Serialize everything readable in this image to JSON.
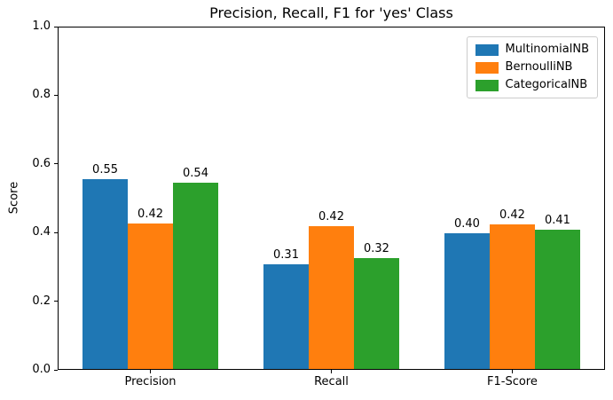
{
  "chart_data": {
    "type": "bar",
    "title": "Precision, Recall, F1 for 'yes' Class",
    "ylabel": "Score",
    "xlabel": "",
    "categories": [
      "Precision",
      "Recall",
      "F1-Score"
    ],
    "series": [
      {
        "name": "MultinomialNB",
        "color": "#1f77b4",
        "values": [
          0.553,
          0.306,
          0.395
        ],
        "labels": [
          "0.55",
          "0.31",
          "0.40"
        ]
      },
      {
        "name": "BernoulliNB",
        "color": "#ff7f0e",
        "values": [
          0.424,
          0.417,
          0.42
        ],
        "labels": [
          "0.42",
          "0.42",
          "0.42"
        ]
      },
      {
        "name": "CategoricalNB",
        "color": "#2ca02c",
        "values": [
          0.543,
          0.323,
          0.405
        ],
        "labels": [
          "0.54",
          "0.32",
          "0.41"
        ]
      }
    ],
    "ylim": [
      0.0,
      1.0
    ],
    "yticks": [
      0.0,
      0.2,
      0.4,
      0.6,
      0.8,
      1.0
    ],
    "ytick_labels": [
      "0.0",
      "0.2",
      "0.4",
      "0.6",
      "0.8",
      "1.0"
    ],
    "bar_width": 0.25,
    "legend_position": "upper right",
    "grid": false,
    "axis_color": "#000000",
    "text_color": "#000000",
    "background_color": "#ffffff"
  }
}
